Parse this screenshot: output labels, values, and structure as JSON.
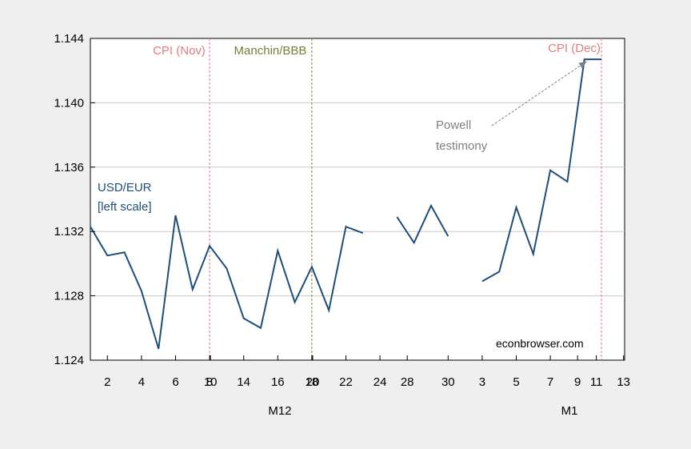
{
  "chart_data": {
    "type": "line",
    "y_ticks": [
      "1.124",
      "1.128",
      "1.132",
      "1.136",
      "1.140",
      "1.144"
    ],
    "ylim": [
      1.124,
      1.144
    ],
    "x_ticks": [
      "2",
      "4",
      "6",
      "8",
      "10",
      "14",
      "16",
      "18",
      "20",
      "22",
      "24",
      "28",
      "30",
      "3",
      "5",
      "7",
      "9",
      "11",
      "13"
    ],
    "x_groups": [
      "M12",
      "M1"
    ],
    "dates": [
      "Dec 1",
      "Dec 2",
      "Dec 3",
      "Dec 6",
      "Dec 7",
      "Dec 8",
      "Dec 9",
      "Dec 10",
      "Dec 13",
      "Dec 14",
      "Dec 15",
      "Dec 16",
      "Dec 17",
      "Dec 20",
      "Dec 21",
      "Dec 22",
      "Dec 23",
      "Dec 24",
      "Dec 27",
      "Dec 28",
      "Dec 29",
      "Dec 30",
      "Dec 31",
      "Jan 3",
      "Jan 4",
      "Jan 5",
      "Jan 6",
      "Jan 7",
      "Jan 10",
      "Jan 11",
      "Jan 12",
      "Jan 13"
    ],
    "series": [
      {
        "name": "USD/EUR",
        "color": "#1f4e79",
        "values": [
          1.1323,
          1.1305,
          1.1307,
          1.1283,
          1.1247,
          1.133,
          1.1284,
          1.1311,
          1.1297,
          1.1266,
          1.126,
          1.1308,
          1.1276,
          1.1298,
          1.1271,
          1.1323,
          1.1319,
          null,
          1.1329,
          1.1313,
          1.1336,
          1.1317,
          null,
          1.1289,
          1.1295,
          1.1335,
          1.1306,
          1.1358,
          1.1351,
          1.1427,
          1.1427,
          null
        ]
      }
    ],
    "event_lines": [
      {
        "label": "CPI (Nov)",
        "date": "Dec 10",
        "color": "#e27d7d"
      },
      {
        "label": "Manchin/BBB",
        "date": "Dec 20",
        "color": "#7d7d3a"
      },
      {
        "label": "CPI (Dec)",
        "date": "Jan 12",
        "color": "#e27d7d"
      }
    ],
    "annotations": {
      "series_label": [
        "USD/EUR",
        "[left scale]"
      ],
      "powell": [
        "Powell",
        "testimony"
      ],
      "watermark": "econbrowser.com"
    },
    "grid": true,
    "legend": "none"
  }
}
